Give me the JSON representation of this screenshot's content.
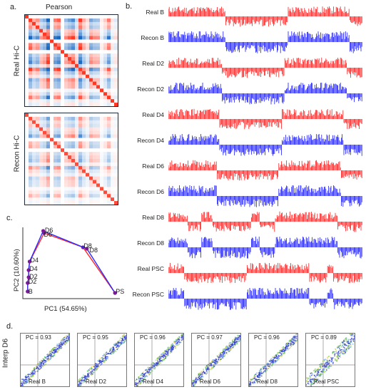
{
  "panel_labels": {
    "a": "a.",
    "b": "b.",
    "c": "c.",
    "d": "d."
  },
  "panel_a": {
    "title": "Pearson",
    "row_labels": [
      "Real Hi-C",
      "Recon Hi-C"
    ]
  },
  "panel_b": {
    "tracks": [
      {
        "label": "Real B",
        "color": "#ff1a1a"
      },
      {
        "label": "Recon B",
        "color": "#1a1aff"
      },
      {
        "label": "Real D2",
        "color": "#ff1a1a"
      },
      {
        "label": "Recon D2",
        "color": "#1a1aff"
      },
      {
        "label": "Real D4",
        "color": "#ff1a1a"
      },
      {
        "label": "Recon D4",
        "color": "#1a1aff"
      },
      {
        "label": "Real D6",
        "color": "#ff1a1a"
      },
      {
        "label": "Recon D6",
        "color": "#1a1aff"
      },
      {
        "label": "Real D8",
        "color": "#ff1a1a"
      },
      {
        "label": "Recon D8",
        "color": "#1a1aff"
      },
      {
        "label": "Real PSC",
        "color": "#ff1a1a"
      },
      {
        "label": "Recon PSC",
        "color": "#1a1aff"
      }
    ]
  },
  "chart_data": {
    "type": "line",
    "xlabel": "PC1 (54.65%)",
    "ylabel": "PC2 (10.60%)",
    "series": [
      {
        "color": "#ff2a2a",
        "points": [
          [
            0.05,
            0.1
          ],
          [
            0.05,
            0.22
          ],
          [
            0.06,
            0.3
          ],
          [
            0.06,
            0.4
          ],
          [
            0.07,
            0.52
          ],
          [
            0.22,
            0.92
          ],
          [
            0.62,
            0.72
          ],
          [
            0.95,
            0.08
          ]
        ]
      },
      {
        "color": "#2a2aff",
        "points": [
          [
            0.05,
            0.1
          ],
          [
            0.05,
            0.22
          ],
          [
            0.06,
            0.3
          ],
          [
            0.06,
            0.4
          ],
          [
            0.07,
            0.52
          ],
          [
            0.21,
            0.95
          ],
          [
            0.66,
            0.7
          ],
          [
            0.95,
            0.08
          ]
        ]
      }
    ],
    "point_labels": [
      {
        "text": "B",
        "x": 0.05,
        "y": 0.1
      },
      {
        "text": "D2",
        "x": 0.05,
        "y": 0.24
      },
      {
        "text": "D2",
        "x": 0.06,
        "y": 0.31
      },
      {
        "text": "D4",
        "x": 0.06,
        "y": 0.42
      },
      {
        "text": "D4",
        "x": 0.07,
        "y": 0.54
      },
      {
        "text": "D6",
        "x": 0.22,
        "y": 0.96
      },
      {
        "text": "D6",
        "x": 0.21,
        "y": 0.9
      },
      {
        "text": "D8",
        "x": 0.62,
        "y": 0.74
      },
      {
        "text": "D8",
        "x": 0.68,
        "y": 0.68
      },
      {
        "text": "PSC",
        "x": 0.95,
        "y": 0.1
      }
    ]
  },
  "panel_d": {
    "y_label": "Interp D6",
    "plots": [
      {
        "pc": "PC = 0.93",
        "x_label": "Real B"
      },
      {
        "pc": "PC = 0.95",
        "x_label": "Real  D2"
      },
      {
        "pc": "PC = 0.96",
        "x_label": "Real D4"
      },
      {
        "pc": "PC = 0.97",
        "x_label": "Real  D6"
      },
      {
        "pc": "PC = 0.96",
        "x_label": "Real D8"
      },
      {
        "pc": "PC = 0.89",
        "x_label": "Real PSC"
      }
    ]
  }
}
